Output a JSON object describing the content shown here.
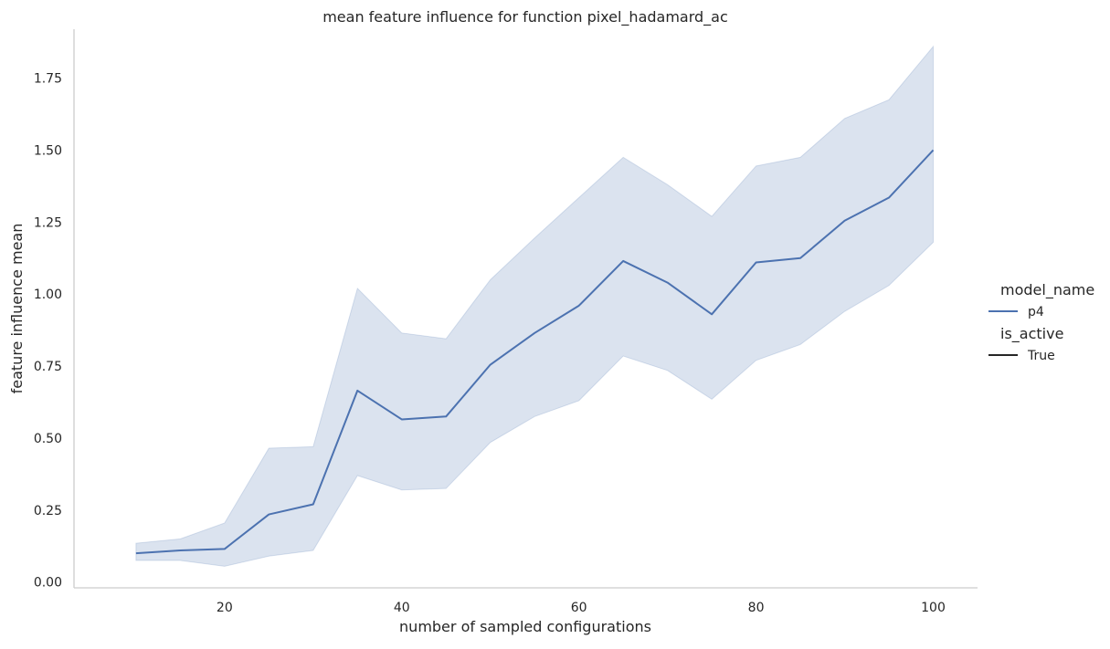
{
  "chart_data": {
    "type": "line",
    "title": "mean feature influence for function pixel_hadamard_ac",
    "xlabel": "number of sampled configurations",
    "ylabel": "feature influence mean",
    "xlim": [
      3,
      105
    ],
    "ylim": [
      -0.02,
      1.92
    ],
    "xticks": [
      20,
      40,
      60,
      80,
      100
    ],
    "yticks": [
      0.0,
      0.25,
      0.5,
      0.75,
      1.0,
      1.25,
      1.5,
      1.75
    ],
    "ytick_labels": [
      "0.00",
      "0.25",
      "0.50",
      "0.75",
      "1.00",
      "1.25",
      "1.50",
      "1.75"
    ],
    "grid": false,
    "legend_position": "right",
    "x": [
      10,
      15,
      20,
      25,
      30,
      35,
      40,
      45,
      50,
      55,
      60,
      65,
      70,
      75,
      80,
      85,
      90,
      95,
      100
    ],
    "series": [
      {
        "name": "p4",
        "color": "#4c72b0",
        "values": [
          0.1,
          0.11,
          0.115,
          0.235,
          0.27,
          0.665,
          0.565,
          0.575,
          0.755,
          0.865,
          0.96,
          1.115,
          1.04,
          0.93,
          1.11,
          1.125,
          1.255,
          1.335,
          1.5
        ],
        "ci_lower": [
          0.075,
          0.075,
          0.055,
          0.09,
          0.11,
          0.37,
          0.32,
          0.325,
          0.485,
          0.575,
          0.63,
          0.785,
          0.735,
          0.635,
          0.77,
          0.825,
          0.94,
          1.03,
          1.18
        ],
        "ci_upper": [
          0.135,
          0.15,
          0.205,
          0.465,
          0.47,
          1.02,
          0.865,
          0.845,
          1.05,
          1.195,
          1.335,
          1.475,
          1.38,
          1.27,
          1.445,
          1.475,
          1.61,
          1.675,
          1.86
        ]
      }
    ],
    "legend": {
      "hue_title": "model_name",
      "hue_entries": [
        {
          "label": "p4",
          "color": "#4c72b0"
        }
      ],
      "style_title": "is_active",
      "style_entries": [
        {
          "label": "True",
          "color": "#262626"
        }
      ]
    }
  }
}
